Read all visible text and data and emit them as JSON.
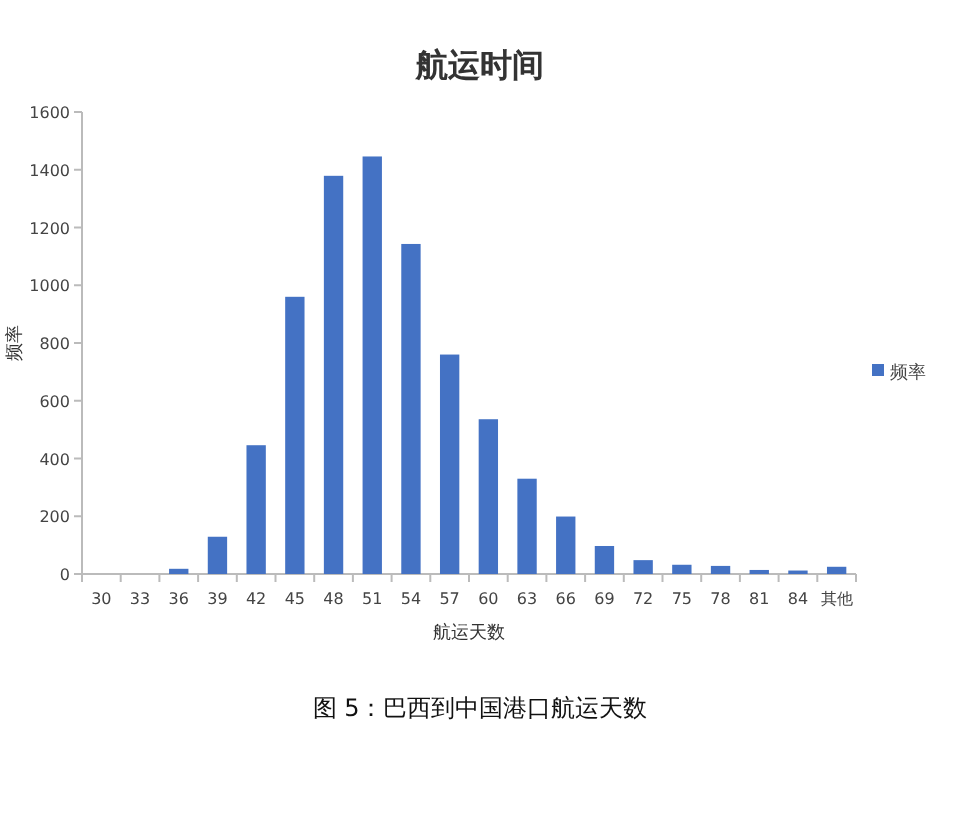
{
  "chart_data": {
    "type": "bar",
    "title": "航运时间",
    "xlabel": "航运天数",
    "ylabel": "频率",
    "categories": [
      "30",
      "33",
      "36",
      "39",
      "42",
      "45",
      "48",
      "51",
      "54",
      "57",
      "60",
      "63",
      "66",
      "69",
      "72",
      "75",
      "78",
      "81",
      "84",
      "其他"
    ],
    "series": [
      {
        "name": "频率",
        "color": "#4472c4",
        "values": [
          0,
          0,
          18,
          129,
          446,
          960,
          1379,
          1446,
          1143,
          760,
          536,
          330,
          199,
          97,
          48,
          32,
          28,
          14,
          12,
          25
        ]
      }
    ],
    "ylim": [
      0,
      1600
    ],
    "yticks": [
      0,
      200,
      400,
      600,
      800,
      1000,
      1200,
      1400,
      1600
    ],
    "grid": false,
    "legend": "right",
    "annotations": [
      "图 5：巴西到中国港口航运天数"
    ]
  }
}
